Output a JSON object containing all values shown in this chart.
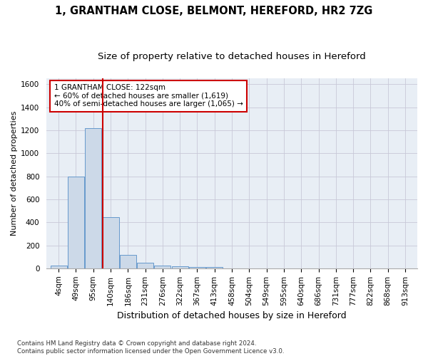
{
  "title_line1": "1, GRANTHAM CLOSE, BELMONT, HEREFORD, HR2 7ZG",
  "title_line2": "Size of property relative to detached houses in Hereford",
  "xlabel": "Distribution of detached houses by size in Hereford",
  "ylabel": "Number of detached properties",
  "footnote": "Contains HM Land Registry data © Crown copyright and database right 2024.\nContains public sector information licensed under the Open Government Licence v3.0.",
  "bar_labels": [
    "4sqm",
    "49sqm",
    "95sqm",
    "140sqm",
    "186sqm",
    "231sqm",
    "276sqm",
    "322sqm",
    "367sqm",
    "413sqm",
    "458sqm",
    "504sqm",
    "549sqm",
    "595sqm",
    "640sqm",
    "686sqm",
    "731sqm",
    "777sqm",
    "822sqm",
    "868sqm",
    "913sqm"
  ],
  "bar_values": [
    25,
    800,
    1220,
    445,
    115,
    50,
    25,
    18,
    10,
    10,
    0,
    0,
    0,
    0,
    0,
    0,
    0,
    0,
    0,
    0,
    0
  ],
  "bar_color": "#ccd9e8",
  "bar_edge_color": "#6699cc",
  "vline_x": 2.55,
  "vline_color": "#cc0000",
  "annotation_text": "1 GRANTHAM CLOSE: 122sqm\n← 60% of detached houses are smaller (1,619)\n40% of semi-detached houses are larger (1,065) →",
  "annotation_box_color": "#cc0000",
  "ylim": [
    0,
    1650
  ],
  "yticks": [
    0,
    200,
    400,
    600,
    800,
    1000,
    1200,
    1400,
    1600
  ],
  "grid_color": "#c8c8d8",
  "bg_color": "#e8eef5",
  "title1_fontsize": 10.5,
  "title2_fontsize": 9.5,
  "xlabel_fontsize": 9,
  "ylabel_fontsize": 8,
  "tick_fontsize": 7.5,
  "annot_fontsize": 7.5
}
